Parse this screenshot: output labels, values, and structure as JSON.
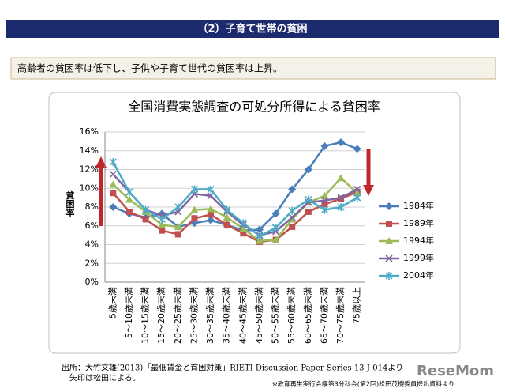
{
  "header": {
    "title": "（2）子育て世帯の貧困"
  },
  "summary": "高齢者の貧困率は低下し、子供や子育て世代の貧困率は上昇。",
  "chart_data": {
    "type": "line",
    "title": "全国消費実態調査の可処分所得による貧困率",
    "y_label": "貧困率",
    "categories": [
      "5歳未満",
      "5～10歳未満",
      "10～15歳未満",
      "15～20歳未満",
      "20～25歳未満",
      "25～30歳未満",
      "30～35歳未満",
      "35～40歳未満",
      "40～45歳未満",
      "45～50歳未満",
      "50～55歳未満",
      "55～60歳未満",
      "60～65歳未満",
      "65～70歳未満",
      "70～75歳未満",
      "75歳以上"
    ],
    "series": [
      {
        "name": "1984年",
        "color": "#4a7ebb",
        "marker": "diamond",
        "values": [
          8.0,
          7.3,
          6.9,
          7.3,
          5.9,
          6.3,
          6.6,
          6.1,
          5.5,
          5.6,
          7.3,
          9.9,
          12.0,
          14.5,
          14.9,
          14.2
        ]
      },
      {
        "name": "1989年",
        "color": "#c0504d",
        "marker": "square",
        "values": [
          9.5,
          7.5,
          6.7,
          5.5,
          5.1,
          6.8,
          7.2,
          6.1,
          5.2,
          4.3,
          4.5,
          5.9,
          7.5,
          8.3,
          8.9,
          9.6
        ]
      },
      {
        "name": "1994年",
        "color": "#9bbb59",
        "marker": "triangle",
        "values": [
          10.4,
          8.8,
          7.5,
          6.1,
          5.9,
          7.7,
          7.8,
          6.9,
          5.7,
          4.4,
          4.5,
          6.7,
          8.5,
          9.2,
          11.1,
          9.5
        ]
      },
      {
        "name": "1999年",
        "color": "#8064a2",
        "marker": "x",
        "values": [
          11.5,
          9.6,
          7.7,
          7.1,
          7.5,
          9.4,
          9.2,
          7.5,
          6.1,
          5.0,
          5.4,
          6.9,
          8.5,
          8.7,
          9.0,
          9.9
        ]
      },
      {
        "name": "2004年",
        "color": "#4bacc6",
        "marker": "star",
        "values": [
          12.8,
          9.6,
          7.7,
          6.7,
          8.0,
          9.9,
          9.9,
          7.7,
          6.3,
          4.9,
          5.8,
          7.6,
          8.8,
          7.7,
          8.0,
          9.0
        ]
      }
    ],
    "ylim": [
      0,
      16
    ],
    "yticks": [
      {
        "value": 0,
        "label": "0%"
      },
      {
        "value": 2,
        "label": "2%"
      },
      {
        "value": 4,
        "label": "4%"
      },
      {
        "value": 6,
        "label": "6%"
      },
      {
        "value": 8,
        "label": "8%"
      },
      {
        "value": 10,
        "label": "10%"
      },
      {
        "value": 12,
        "label": "12%"
      },
      {
        "value": 14,
        "label": "14%"
      },
      {
        "value": 16,
        "label": "16%"
      }
    ],
    "grid": true,
    "legend": "right"
  },
  "source": [
    "出所：大竹文雄(2013)「最低賃金と貧困対策」RIETI Discussion Paper Series 13-J-014より",
    "矢印は松田による。"
  ],
  "footnote": "※教育再生実行会議第3分科会(第2回)松田茂樹委員提出資料より",
  "logo": "ReseMom"
}
